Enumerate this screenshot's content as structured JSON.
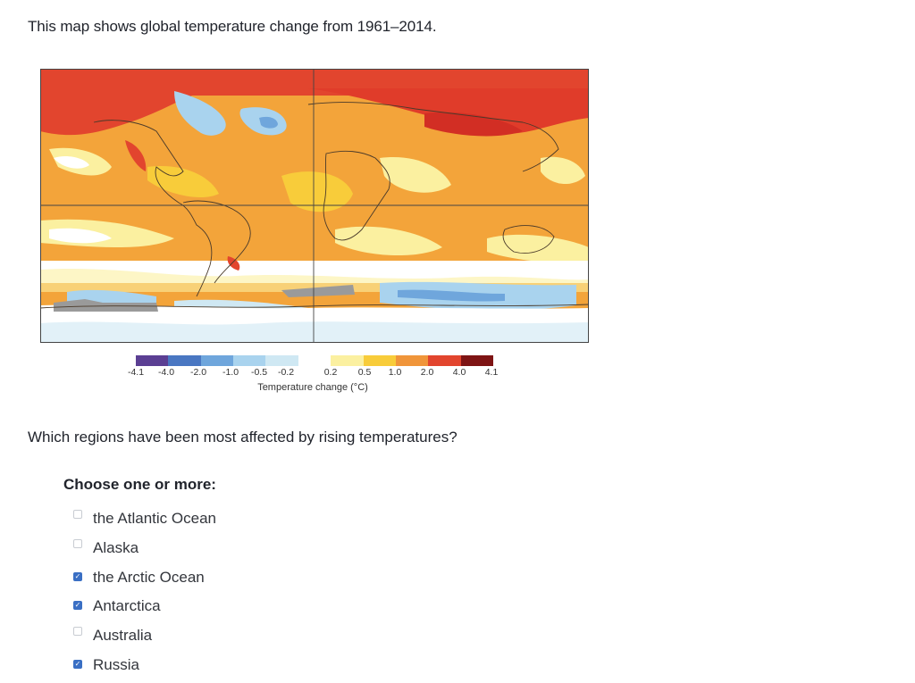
{
  "intro": "This map shows global temperature change from 1961–2014.",
  "map": {
    "icon": "global-temperature-map",
    "legend": {
      "ticks": [
        "-4.1",
        "-4.0",
        "-2.0",
        "-1.0",
        "-0.5",
        "-0.2",
        "0.2",
        "0.5",
        "1.0",
        "2.0",
        "4.0",
        "4.1"
      ],
      "colors": [
        "#5b3f93",
        "#4a77c2",
        "#6fa6dc",
        "#a9d3ee",
        "#cfe8f3",
        "#ffffff",
        "#fbf0a0",
        "#f8cc3a",
        "#f0953a",
        "#e2452e",
        "#7e1414"
      ],
      "title": "Temperature change (°C)"
    }
  },
  "question": "Which regions have been most affected by rising temperatures?",
  "instructions": "Choose one or more:",
  "options": [
    {
      "label": "the Atlantic Ocean",
      "checked": false
    },
    {
      "label": "Alaska",
      "checked": false
    },
    {
      "label": "the Arctic Ocean",
      "checked": true
    },
    {
      "label": "Antarctica",
      "checked": true
    },
    {
      "label": "Australia",
      "checked": false
    },
    {
      "label": "Russia",
      "checked": true
    }
  ]
}
